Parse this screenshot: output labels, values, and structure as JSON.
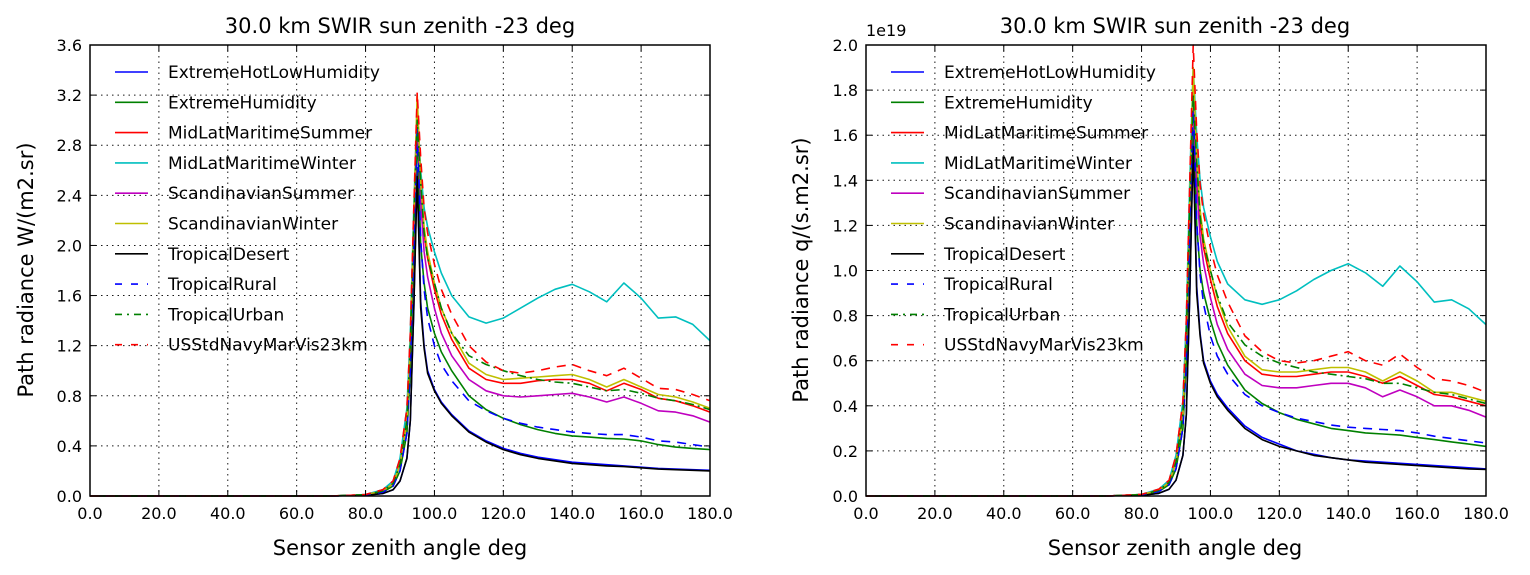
{
  "chart_data": [
    {
      "type": "line",
      "title": "30.0 km SWIR sun zenith -23 deg",
      "xlabel": "Sensor zenith angle deg",
      "ylabel": "Path radiance W/(m2.sr)",
      "offset_label": "",
      "xlim": [
        0,
        180
      ],
      "ylim": [
        0,
        3.6
      ],
      "xticks": [
        "0.0",
        "20.0",
        "40.0",
        "60.0",
        "80.0",
        "100.0",
        "120.0",
        "140.0",
        "160.0",
        "180.0"
      ],
      "yticks": [
        "0.0",
        "0.4",
        "0.8",
        "1.2",
        "1.6",
        "2.0",
        "2.4",
        "2.8",
        "3.2",
        "3.6"
      ],
      "grid": true,
      "legend_position": "upper-left",
      "x": [
        0,
        10,
        20,
        30,
        40,
        50,
        60,
        70,
        75,
        80,
        85,
        88,
        90,
        92,
        93,
        94,
        95,
        96,
        97,
        98,
        100,
        102,
        105,
        110,
        115,
        120,
        125,
        130,
        135,
        140,
        145,
        150,
        155,
        160,
        165,
        170,
        175,
        180
      ],
      "series": [
        {
          "name": "ExtremeHotLowHumidity",
          "color": "#0000ff",
          "dash": "solid",
          "values": [
            0,
            0,
            0,
            0,
            0,
            0,
            0,
            0,
            0.003,
            0.005,
            0.02,
            0.05,
            0.12,
            0.3,
            0.6,
            1.5,
            2.62,
            1.55,
            1.2,
            1.0,
            0.85,
            0.75,
            0.65,
            0.52,
            0.44,
            0.38,
            0.34,
            0.31,
            0.29,
            0.27,
            0.26,
            0.25,
            0.24,
            0.23,
            0.22,
            0.215,
            0.21,
            0.205
          ]
        },
        {
          "name": "ExtremeHumidity",
          "color": "#008000",
          "dash": "solid",
          "values": [
            0,
            0,
            0,
            0,
            0,
            0,
            0,
            0,
            0.005,
            0.01,
            0.03,
            0.08,
            0.2,
            0.5,
            1.0,
            2.0,
            2.9,
            2.0,
            1.7,
            1.5,
            1.3,
            1.15,
            1.0,
            0.8,
            0.69,
            0.62,
            0.57,
            0.53,
            0.5,
            0.48,
            0.47,
            0.46,
            0.455,
            0.44,
            0.41,
            0.39,
            0.38,
            0.37
          ]
        },
        {
          "name": "MidLatMaritimeSummer",
          "color": "#ff0000",
          "dash": "solid",
          "values": [
            0,
            0,
            0,
            0,
            0,
            0,
            0,
            0,
            0.005,
            0.01,
            0.04,
            0.1,
            0.25,
            0.6,
            1.2,
            2.2,
            3.15,
            2.5,
            2.1,
            1.9,
            1.65,
            1.45,
            1.25,
            1.02,
            0.93,
            0.9,
            0.9,
            0.92,
            0.93,
            0.93,
            0.9,
            0.84,
            0.9,
            0.85,
            0.78,
            0.76,
            0.72,
            0.67
          ]
        },
        {
          "name": "MidLatMaritimeWinter",
          "color": "#00bfbf",
          "dash": "solid",
          "values": [
            0,
            0,
            0,
            0,
            0,
            0,
            0,
            0,
            0.005,
            0.012,
            0.05,
            0.12,
            0.3,
            0.7,
            1.3,
            2.3,
            3.1,
            2.6,
            2.3,
            2.15,
            1.95,
            1.78,
            1.6,
            1.43,
            1.38,
            1.42,
            1.5,
            1.58,
            1.65,
            1.69,
            1.63,
            1.55,
            1.7,
            1.58,
            1.42,
            1.43,
            1.37,
            1.24
          ]
        },
        {
          "name": "ScandinavianSummer",
          "color": "#bf00bf",
          "dash": "solid",
          "values": [
            0,
            0,
            0,
            0,
            0,
            0,
            0,
            0,
            0.005,
            0.01,
            0.04,
            0.1,
            0.25,
            0.6,
            1.2,
            2.1,
            3.0,
            2.35,
            1.95,
            1.75,
            1.5,
            1.3,
            1.12,
            0.93,
            0.84,
            0.8,
            0.79,
            0.8,
            0.81,
            0.82,
            0.79,
            0.75,
            0.79,
            0.74,
            0.68,
            0.67,
            0.64,
            0.59
          ]
        },
        {
          "name": "ScandinavianWinter",
          "color": "#bfbf00",
          "dash": "solid",
          "values": [
            0,
            0,
            0,
            0,
            0,
            0,
            0,
            0,
            0.005,
            0.01,
            0.04,
            0.1,
            0.25,
            0.6,
            1.2,
            2.2,
            3.2,
            2.5,
            2.15,
            1.95,
            1.7,
            1.5,
            1.3,
            1.06,
            0.97,
            0.93,
            0.94,
            0.95,
            0.96,
            0.97,
            0.93,
            0.87,
            0.93,
            0.87,
            0.81,
            0.79,
            0.75,
            0.7
          ]
        },
        {
          "name": "TropicalDesert",
          "color": "#000000",
          "dash": "solid",
          "values": [
            0,
            0,
            0,
            0,
            0,
            0,
            0,
            0,
            0.003,
            0.005,
            0.02,
            0.05,
            0.12,
            0.3,
            0.6,
            1.5,
            2.55,
            1.5,
            1.18,
            0.98,
            0.84,
            0.74,
            0.64,
            0.51,
            0.43,
            0.37,
            0.33,
            0.3,
            0.28,
            0.26,
            0.25,
            0.24,
            0.235,
            0.225,
            0.215,
            0.21,
            0.205,
            0.2
          ]
        },
        {
          "name": "TropicalRural",
          "color": "#0000ff",
          "dash": "dashed",
          "values": [
            0,
            0,
            0,
            0,
            0,
            0,
            0,
            0,
            0.004,
            0.008,
            0.03,
            0.08,
            0.2,
            0.5,
            1.0,
            2.0,
            2.95,
            2.05,
            1.65,
            1.42,
            1.2,
            1.05,
            0.92,
            0.76,
            0.68,
            0.62,
            0.58,
            0.55,
            0.53,
            0.51,
            0.5,
            0.49,
            0.49,
            0.47,
            0.44,
            0.43,
            0.41,
            0.39
          ]
        },
        {
          "name": "TropicalUrban",
          "color": "#008000",
          "dash": "dashdot",
          "values": [
            0,
            0,
            0,
            0,
            0,
            0,
            0,
            0,
            0.005,
            0.01,
            0.04,
            0.1,
            0.25,
            0.6,
            1.2,
            2.2,
            3.0,
            2.5,
            2.1,
            1.9,
            1.7,
            1.5,
            1.3,
            1.12,
            1.05,
            1.0,
            0.96,
            0.93,
            0.91,
            0.9,
            0.87,
            0.84,
            0.85,
            0.82,
            0.78,
            0.76,
            0.73,
            0.69
          ]
        },
        {
          "name": "USStdNavyMarVis23km",
          "color": "#ff0000",
          "dash": "dashed",
          "values": [
            0,
            0,
            0,
            0,
            0,
            0,
            0,
            0,
            0.005,
            0.012,
            0.05,
            0.12,
            0.3,
            0.7,
            1.3,
            2.3,
            3.22,
            2.7,
            2.3,
            2.1,
            1.85,
            1.65,
            1.45,
            1.2,
            1.07,
            1.0,
            0.98,
            1.0,
            1.03,
            1.05,
            1.0,
            0.96,
            1.02,
            0.94,
            0.86,
            0.85,
            0.81,
            0.76
          ]
        }
      ]
    },
    {
      "type": "line",
      "title": "30.0 km SWIR sun zenith -23 deg",
      "xlabel": "Sensor zenith angle deg",
      "ylabel": "Path radiance q/(s.m2.sr)",
      "offset_label": "1e19",
      "xlim": [
        0,
        180
      ],
      "ylim": [
        0,
        2.0
      ],
      "xticks": [
        "0.0",
        "20.0",
        "40.0",
        "60.0",
        "80.0",
        "100.0",
        "120.0",
        "140.0",
        "160.0",
        "180.0"
      ],
      "yticks": [
        "0.0",
        "0.2",
        "0.4",
        "0.6",
        "0.8",
        "1.0",
        "1.2",
        "1.4",
        "1.6",
        "1.8",
        "2.0"
      ],
      "grid": true,
      "legend_position": "upper-left",
      "x": [
        0,
        10,
        20,
        30,
        40,
        50,
        60,
        70,
        75,
        80,
        85,
        88,
        90,
        92,
        93,
        94,
        95,
        96,
        97,
        98,
        100,
        102,
        105,
        110,
        115,
        120,
        125,
        130,
        135,
        140,
        145,
        150,
        155,
        160,
        165,
        170,
        175,
        180
      ],
      "series": [
        {
          "name": "ExtremeHotLowHumidity",
          "color": "#0000ff",
          "dash": "solid",
          "values": [
            0,
            0,
            0,
            0,
            0,
            0,
            0,
            0,
            0.002,
            0.003,
            0.012,
            0.03,
            0.07,
            0.18,
            0.36,
            0.9,
            1.6,
            0.93,
            0.72,
            0.6,
            0.51,
            0.45,
            0.39,
            0.31,
            0.26,
            0.23,
            0.2,
            0.185,
            0.17,
            0.16,
            0.155,
            0.15,
            0.145,
            0.14,
            0.135,
            0.13,
            0.125,
            0.12
          ]
        },
        {
          "name": "ExtremeHumidity",
          "color": "#008000",
          "dash": "solid",
          "values": [
            0,
            0,
            0,
            0,
            0,
            0,
            0,
            0,
            0.003,
            0.006,
            0.02,
            0.05,
            0.12,
            0.3,
            0.6,
            1.2,
            1.7,
            1.2,
            1.0,
            0.9,
            0.78,
            0.68,
            0.58,
            0.47,
            0.41,
            0.37,
            0.34,
            0.32,
            0.3,
            0.29,
            0.28,
            0.275,
            0.27,
            0.26,
            0.25,
            0.24,
            0.23,
            0.22
          ]
        },
        {
          "name": "MidLatMaritimeSummer",
          "color": "#ff0000",
          "dash": "solid",
          "values": [
            0,
            0,
            0,
            0,
            0,
            0,
            0,
            0,
            0.003,
            0.006,
            0.025,
            0.06,
            0.15,
            0.36,
            0.7,
            1.3,
            1.85,
            1.45,
            1.22,
            1.1,
            0.96,
            0.84,
            0.72,
            0.6,
            0.54,
            0.53,
            0.53,
            0.54,
            0.55,
            0.55,
            0.53,
            0.5,
            0.53,
            0.49,
            0.45,
            0.44,
            0.42,
            0.4
          ]
        },
        {
          "name": "MidLatMaritimeWinter",
          "color": "#00bfbf",
          "dash": "solid",
          "values": [
            0,
            0,
            0,
            0,
            0,
            0,
            0,
            0,
            0.003,
            0.007,
            0.03,
            0.07,
            0.18,
            0.42,
            0.78,
            1.4,
            1.9,
            1.6,
            1.4,
            1.28,
            1.15,
            1.04,
            0.94,
            0.87,
            0.85,
            0.87,
            0.91,
            0.96,
            1.0,
            1.03,
            0.99,
            0.93,
            1.02,
            0.95,
            0.86,
            0.87,
            0.83,
            0.76
          ]
        },
        {
          "name": "ScandinavianSummer",
          "color": "#bf00bf",
          "dash": "solid",
          "values": [
            0,
            0,
            0,
            0,
            0,
            0,
            0,
            0,
            0.003,
            0.006,
            0.025,
            0.06,
            0.15,
            0.36,
            0.7,
            1.25,
            1.75,
            1.38,
            1.15,
            1.03,
            0.88,
            0.76,
            0.65,
            0.54,
            0.49,
            0.48,
            0.48,
            0.49,
            0.5,
            0.5,
            0.48,
            0.44,
            0.47,
            0.44,
            0.4,
            0.4,
            0.38,
            0.35
          ]
        },
        {
          "name": "ScandinavianWinter",
          "color": "#bfbf00",
          "dash": "solid",
          "values": [
            0,
            0,
            0,
            0,
            0,
            0,
            0,
            0,
            0.003,
            0.006,
            0.025,
            0.06,
            0.15,
            0.36,
            0.7,
            1.3,
            1.9,
            1.5,
            1.27,
            1.14,
            1.0,
            0.88,
            0.75,
            0.62,
            0.56,
            0.55,
            0.55,
            0.56,
            0.57,
            0.57,
            0.55,
            0.51,
            0.55,
            0.51,
            0.46,
            0.46,
            0.44,
            0.42
          ]
        },
        {
          "name": "TropicalDesert",
          "color": "#000000",
          "dash": "solid",
          "values": [
            0,
            0,
            0,
            0,
            0,
            0,
            0,
            0,
            0.002,
            0.003,
            0.012,
            0.03,
            0.07,
            0.18,
            0.36,
            0.9,
            1.55,
            0.9,
            0.71,
            0.59,
            0.5,
            0.44,
            0.38,
            0.3,
            0.25,
            0.22,
            0.2,
            0.18,
            0.17,
            0.16,
            0.15,
            0.145,
            0.14,
            0.135,
            0.13,
            0.125,
            0.12,
            0.118
          ]
        },
        {
          "name": "TropicalRural",
          "color": "#0000ff",
          "dash": "dashed",
          "values": [
            0,
            0,
            0,
            0,
            0,
            0,
            0,
            0,
            0.0025,
            0.005,
            0.02,
            0.05,
            0.12,
            0.3,
            0.6,
            1.2,
            1.75,
            1.22,
            0.98,
            0.85,
            0.71,
            0.62,
            0.54,
            0.45,
            0.4,
            0.37,
            0.345,
            0.33,
            0.315,
            0.305,
            0.3,
            0.295,
            0.29,
            0.28,
            0.265,
            0.255,
            0.245,
            0.235
          ]
        },
        {
          "name": "TropicalUrban",
          "color": "#008000",
          "dash": "dashdot",
          "values": [
            0,
            0,
            0,
            0,
            0,
            0,
            0,
            0,
            0.003,
            0.006,
            0.025,
            0.06,
            0.15,
            0.36,
            0.7,
            1.3,
            1.78,
            1.48,
            1.24,
            1.12,
            1.0,
            0.89,
            0.77,
            0.67,
            0.62,
            0.59,
            0.57,
            0.55,
            0.54,
            0.53,
            0.52,
            0.5,
            0.5,
            0.48,
            0.46,
            0.45,
            0.43,
            0.41
          ]
        },
        {
          "name": "USStdNavyMarVis23km",
          "color": "#ff0000",
          "dash": "dashed",
          "values": [
            0,
            0,
            0,
            0,
            0,
            0,
            0,
            0,
            0.003,
            0.007,
            0.03,
            0.07,
            0.18,
            0.42,
            0.78,
            1.4,
            2.0,
            1.62,
            1.38,
            1.25,
            1.1,
            0.98,
            0.86,
            0.71,
            0.64,
            0.6,
            0.59,
            0.6,
            0.62,
            0.64,
            0.6,
            0.58,
            0.63,
            0.57,
            0.52,
            0.51,
            0.49,
            0.46
          ]
        }
      ]
    }
  ]
}
